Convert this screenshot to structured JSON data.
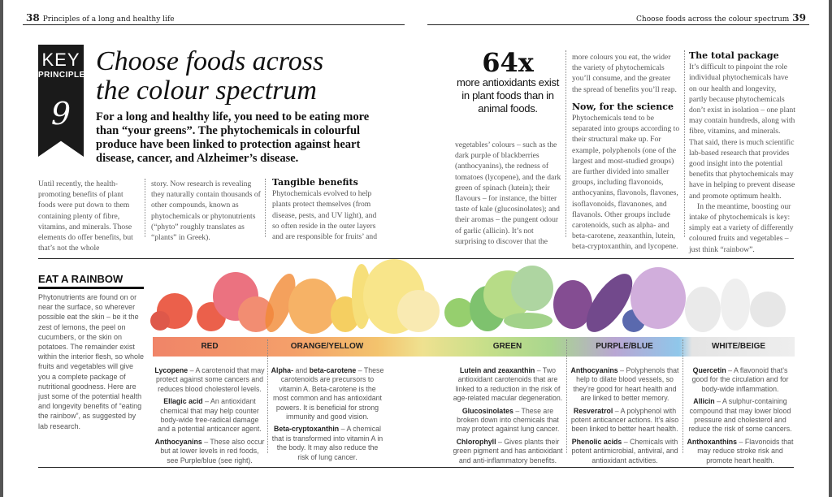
{
  "header": {
    "left_page_num": "38",
    "left_title": "Principles of a long and healthy life",
    "right_title": "Choose foods across the colour spectrum",
    "right_page_num": "39"
  },
  "banner": {
    "key": "KEY",
    "principle": "PRINCIPLE",
    "number": "9"
  },
  "title": "Choose foods across the colour spectrum",
  "intro": "For a long and healthy life, you need to be eating more than “your greens”. The phytochemicals in colourful produce have been linked to protection against heart disease, cancer, and Alzheimer’s disease.",
  "columns": {
    "c1": "Until recently, the health-promoting benefits of plant foods were put down to them containing plenty of fibre, vitamins, and minerals. Those elements do offer benefits, but that’s not the whole",
    "c2": "story. Now research is revealing they naturally contain thousands of other compounds, known as phytochemicals or phytonutrients (“phyto” roughly translates as “plants” in Greek).",
    "c3_heading": "Tangible benefits",
    "c3": "Phytochemicals evolved to help plants protect themselves (from disease, pests, and UV light), and so often reside in the outer layers and are responsible for fruits’ and",
    "c4": "vegetables’ colours – such as the dark purple of blackberries (anthocyanins), the redness of tomatoes (lycopene), and the dark green of spinach (lutein); their flavours – for instance, the bitter taste of kale (glucosinolates); and their aromas – the pungent odour of garlic (allicin). It’s not surprising to discover that the",
    "c5": "more colours you eat, the wider the variety of phytochemicals you’ll consume, and the greater the spread of benefits you’ll reap.",
    "c5_heading": "Now, for the science",
    "c5b": "Phytochemicals tend to be separated into groups according to their structural make up. For example, polyphenols (one of the largest and most-studied groups) are further divided into smaller groups, including flavonoids, anthocyanins, flavonols, flavones, isoflavonoids, flavanones, and flavanols. Other groups include carotenoids, such as alpha- and beta-carotene, zeaxanthin, lutein, beta-cryptoxanthin, and lycopene.",
    "c6_heading": "The total package",
    "c6": "It’s difficult to pinpoint the role individual phytochemicals have on our health and longevity, partly because phytochemicals don’t exist in isolation – one plant may contain hundreds, along with fibre, vitamins, and minerals. That said, there is much scientific lab-based research that provides good insight into the potential benefits that phytochemicals may have in helping to prevent disease and promote optimum health.",
    "c6b": "In the meantime, boosting our intake of phytochemicals is key: simply eat a variety of differently coloured fruits and vegetables – just think “rainbow”."
  },
  "stat": {
    "number": "64x",
    "text": "more antioxidants exist in plant foods than in animal foods."
  },
  "rainbow": {
    "heading": "EAT A RAINBOW",
    "text": "Phytonutrients are found on or near the surface, so wherever possible eat the skin – be it the zest of lemons, the peel on cucumbers, or the skin on potatoes. The remainder exist within the interior flesh, so whole fruits and vegetables will give you a complete package of nutritional goodness. Here are just some of the potential health and longevity benefits of “eating the rainbow”, as suggested by lab research.",
    "groups": [
      {
        "label": "RED",
        "color": "#e8553a",
        "items": [
          {
            "name": "Lycopene",
            "desc": " – A carotenoid that may protect against some cancers and reduces blood cholesterol levels."
          },
          {
            "name": "Ellagic acid",
            "desc": " – An antioxidant chemical that may help counter body-wide free-radical damage and a potential anticancer agent."
          },
          {
            "name": "Anthocyanins",
            "desc": " – These also occur but at lower levels in red foods, see Purple/blue (see right)."
          }
        ]
      },
      {
        "label": "ORANGE/YELLOW",
        "color": "#f3a23c",
        "items": [
          {
            "name": "Alpha-",
            "mid": " and ",
            "name2": "beta-carotene",
            "desc": " – These carotenoids are precursors to vitamin A. Beta-carotene is the most common and has antioxidant powers. It is beneficial for strong immunity and good vision."
          },
          {
            "name": "Beta-cryptoxanthin",
            "desc": " – A chemical that is transformed into vitamin A in the body. It may also reduce the risk of lung cancer."
          }
        ]
      },
      {
        "label": "GREEN",
        "color": "#6cbf4a",
        "items": [
          {
            "name": "Lutein and zeaxanthin",
            "desc": " – Two antioxidant carotenoids that are linked to a reduction in the risk of age-related macular degeneration."
          },
          {
            "name": "Glucosinolates",
            "desc": " – These are broken down into chemicals that may protect against lung cancer."
          },
          {
            "name": "Chlorophyll",
            "desc": " – Gives plants their green pigment and has antioxidant and anti-inflammatory benefits."
          }
        ]
      },
      {
        "label": "PURPLE/BLUE",
        "color": "#7a3d8c",
        "items": [
          {
            "name": "Anthocyanins",
            "desc": " – Polyphenols that help to dilate blood vessels, so they’re good for heart health and are linked to better memory."
          },
          {
            "name": "Resveratrol",
            "desc": " – A polyphenol with potent anticancer actions. It’s also been linked to better heart health."
          },
          {
            "name": "Phenolic acids",
            "desc": " – Chemicals with potent antimicrobial, antiviral, and antioxidant activities."
          }
        ]
      },
      {
        "label": "WHITE/BEIGE",
        "color": "#e2e2e2",
        "items": [
          {
            "name": "Quercetin",
            "desc": " – A flavonoid that’s good for the circulation and for body-wide inflammation."
          },
          {
            "name": "Allicin",
            "desc": " – A sulphur-containing compound that may lower blood pressure and cholesterol and reduce the risk of some cancers."
          },
          {
            "name": "Anthoxanthins",
            "desc": " – Flavonoids that may reduce stroke risk and promote heart health."
          }
        ]
      }
    ]
  }
}
